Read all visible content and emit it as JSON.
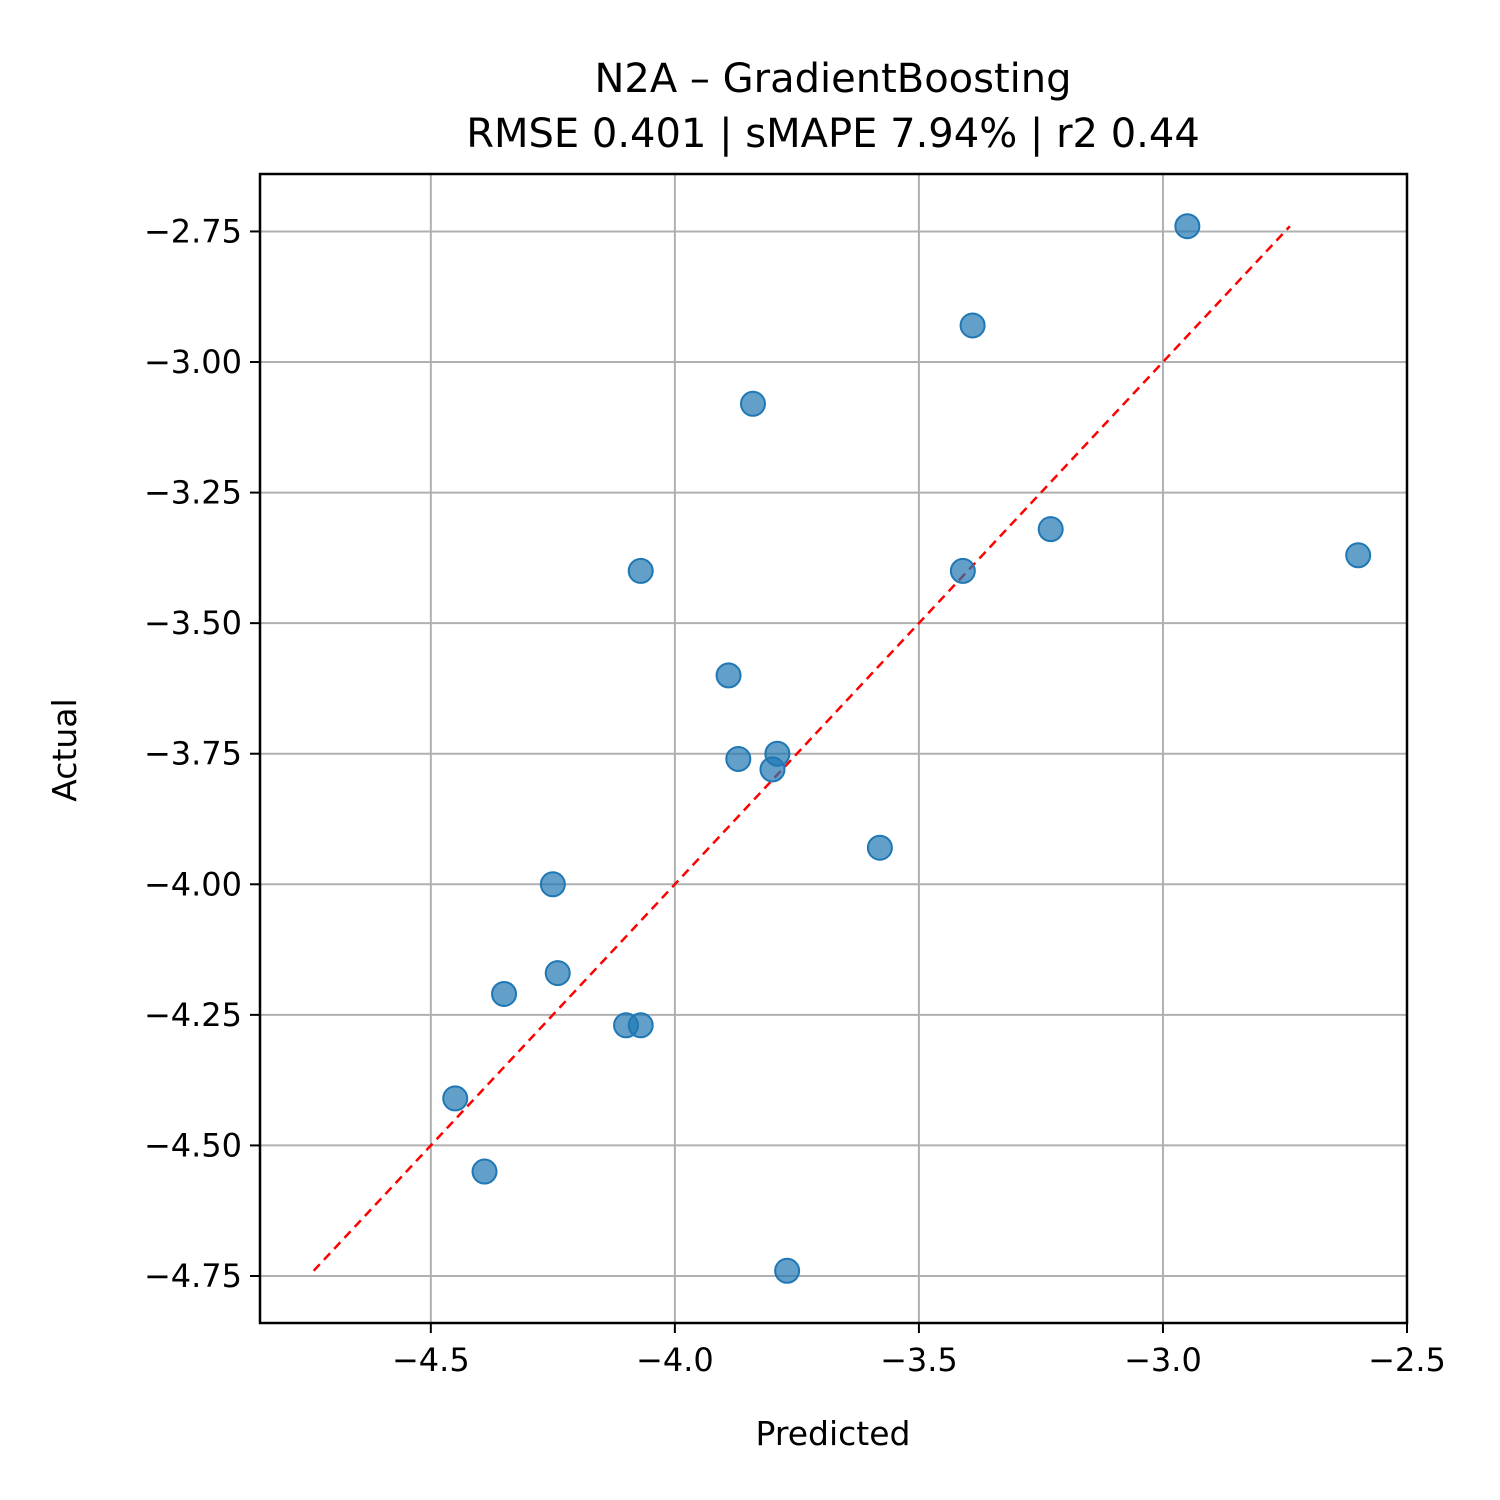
{
  "chart_data": {
    "type": "scatter",
    "title": "N2A – GradientBoosting",
    "subtitle": "RMSE 0.401 | sMAPE 7.94%  | r2 0.44",
    "xlabel": "Predicted",
    "ylabel": "Actual",
    "xlim": [
      -4.85,
      -2.5
    ],
    "ylim": [
      -4.84,
      -2.64
    ],
    "x_ticks": [
      -4.5,
      -4.0,
      -3.5,
      -3.0,
      -2.5
    ],
    "x_tick_labels": [
      "−4.5",
      "−4.0",
      "−3.5",
      "−3.0",
      "−2.5"
    ],
    "y_ticks": [
      -2.75,
      -3.0,
      -3.25,
      -3.5,
      -3.75,
      -4.0,
      -4.25,
      -4.5,
      -4.75
    ],
    "y_tick_labels": [
      "−2.75",
      "−3.00",
      "−3.25",
      "−3.50",
      "−3.75",
      "−4.00",
      "−4.25",
      "−4.50",
      "−4.75"
    ],
    "grid": true,
    "reference_line": {
      "x": [
        -4.74,
        -2.74
      ],
      "y": [
        -4.74,
        -2.74
      ],
      "color": "#ff0000",
      "style": "dashed"
    },
    "point_color": "#1f77b4",
    "points": [
      {
        "x": -2.95,
        "y": -2.74
      },
      {
        "x": -3.39,
        "y": -2.93
      },
      {
        "x": -3.84,
        "y": -3.08
      },
      {
        "x": -3.23,
        "y": -3.32
      },
      {
        "x": -2.6,
        "y": -3.37
      },
      {
        "x": -3.41,
        "y": -3.4
      },
      {
        "x": -4.07,
        "y": -3.4
      },
      {
        "x": -3.89,
        "y": -3.6
      },
      {
        "x": -3.79,
        "y": -3.75
      },
      {
        "x": -3.87,
        "y": -3.76
      },
      {
        "x": -3.8,
        "y": -3.78
      },
      {
        "x": -3.58,
        "y": -3.93
      },
      {
        "x": -4.25,
        "y": -4.0
      },
      {
        "x": -4.24,
        "y": -4.17
      },
      {
        "x": -4.35,
        "y": -4.21
      },
      {
        "x": -4.07,
        "y": -4.27
      },
      {
        "x": -4.1,
        "y": -4.27
      },
      {
        "x": -4.45,
        "y": -4.41
      },
      {
        "x": -4.39,
        "y": -4.55
      },
      {
        "x": -3.77,
        "y": -4.74
      }
    ]
  }
}
